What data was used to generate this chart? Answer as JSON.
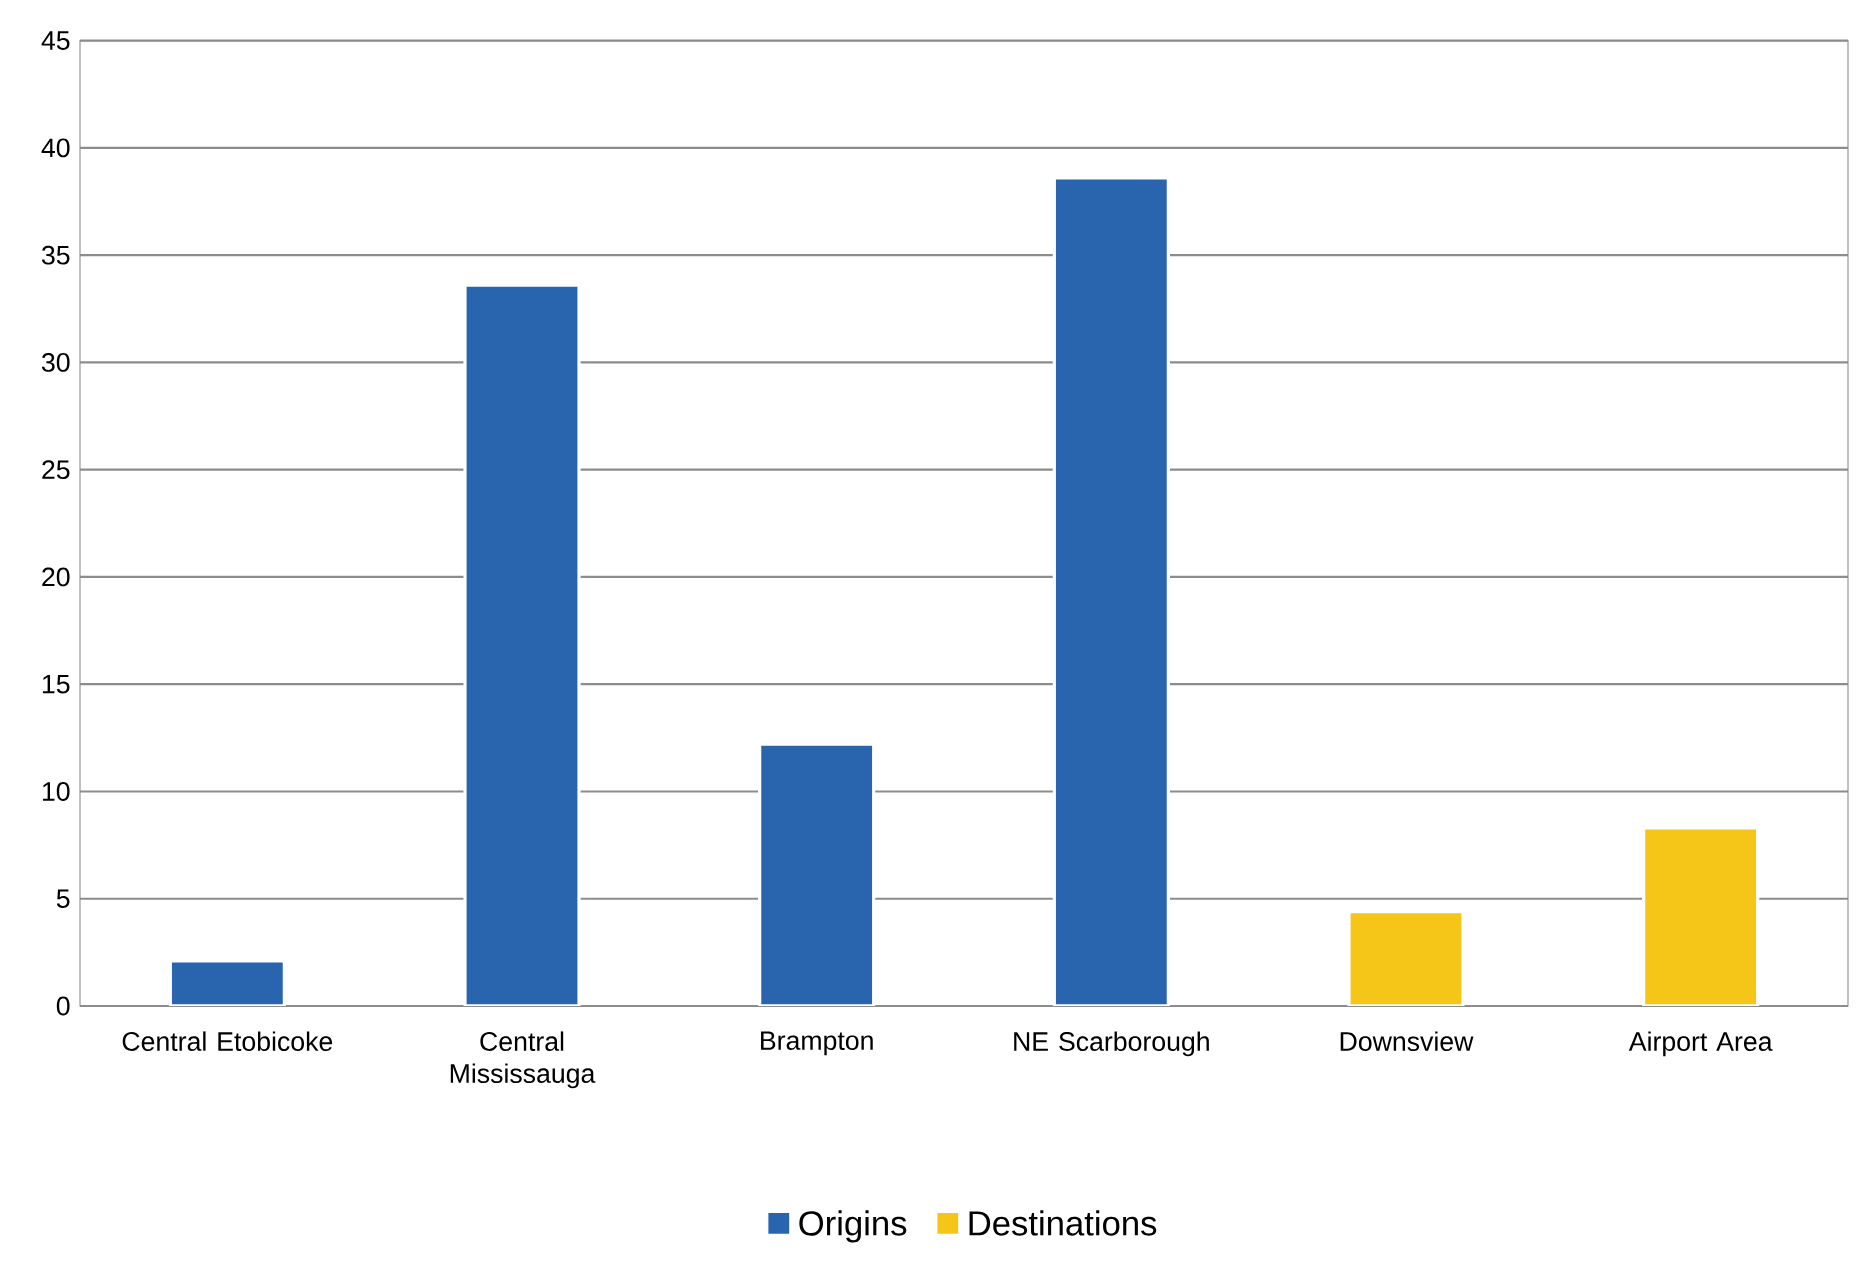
{
  "chart_data": {
    "type": "bar",
    "categories": [
      "Central Etobicoke",
      "Central Mississauga",
      "Brampton",
      "NE Scarborough",
      "Downsview",
      "Airport Area"
    ],
    "series": [
      {
        "name": "Origins",
        "color": "#2964ae",
        "values": [
          2.1,
          33.6,
          12.2,
          38.6,
          null,
          null
        ]
      },
      {
        "name": "Destinations",
        "color": "#f5c518",
        "values": [
          null,
          null,
          null,
          null,
          4.4,
          8.3
        ]
      }
    ],
    "ylim": [
      0,
      45
    ],
    "yticks": [
      0,
      5,
      10,
      15,
      20,
      25,
      30,
      35,
      40,
      45
    ],
    "grid": "y",
    "legend": "bottom"
  }
}
